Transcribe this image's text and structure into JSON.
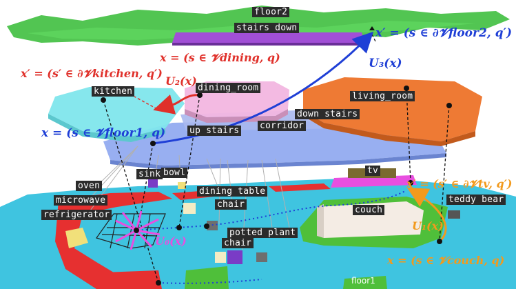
{
  "colors": {
    "floor2": "#3fbf3f",
    "floor1": "#3fc4e0",
    "floor_plane": "#8fa8f0",
    "kitchen": "#7fe6ec",
    "dining_room": "#f2b6e0",
    "living_room": "#ee7a34",
    "stairs_down": "#a14fd6",
    "red_annotation": "#e0302a",
    "blue_annotation": "#1f3fd6",
    "orange_annotation": "#f29a1d",
    "magenta_annotation": "#e84fe0"
  },
  "labels": {
    "floor2": "floor2",
    "stairs_down": "stairs down",
    "kitchen": "kitchen",
    "dining_room": "dining_room",
    "living_room": "living_room",
    "down_stairs": "down stairs",
    "corridor": "corridor",
    "up_stairs": "up stairs",
    "sink": "sink",
    "bowl": "bowl",
    "oven": "oven",
    "microwave": "microwave",
    "refrigerator": "refrigerator",
    "dining_table": "dining table",
    "chair_1": "chair",
    "chair_2": "chair",
    "potted_plant": "potted plant",
    "tv": "tv",
    "couch": "couch",
    "teddy_bear": "teddy bear",
    "floor1": "floor1"
  },
  "math": {
    "x_floor2": "x′ = (s ∈ ∂𝓥floor2, q′)",
    "x_dining": "x = (s ∈ 𝓥dining, q)",
    "x_kitchen": "x′ = (s′ ∈ ∂𝓥kitchen, q′)",
    "x_floor1": "x = (s ∈ 𝓥floor1, q)",
    "x_tv": "x′ = (s′ ∈ ∂𝓥tv, q′)",
    "x_couch": "x = (s ∈ 𝓥couch, q)",
    "U0": "U₀(x)",
    "U1": "U₁(x)",
    "U2": "U₂(x)",
    "U3": "U₃(x)"
  }
}
